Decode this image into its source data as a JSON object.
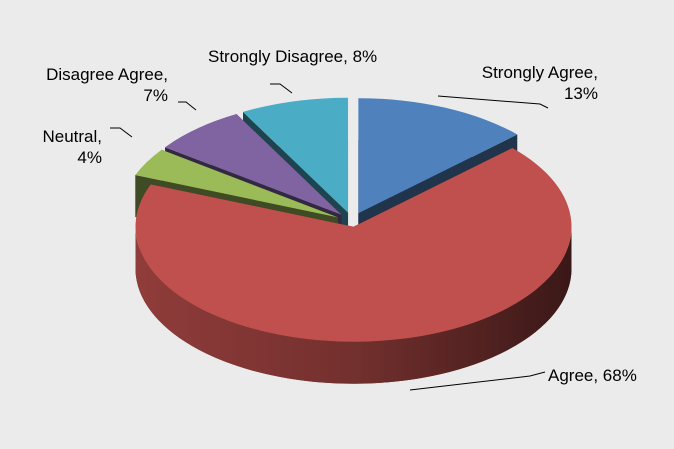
{
  "chart_data": {
    "type": "pie",
    "labels": [
      "Strongly Agree, 13%",
      "Agree, 68%",
      "Neutral, 4%",
      "Disagree Agree, 7%",
      "Strongly Disagree, 8%"
    ],
    "values": [
      13,
      68,
      4,
      7,
      8
    ],
    "colors": [
      "#4f81bd",
      "#c0504d",
      "#9bbb59",
      "#8064a2",
      "#4bacc6"
    ]
  }
}
